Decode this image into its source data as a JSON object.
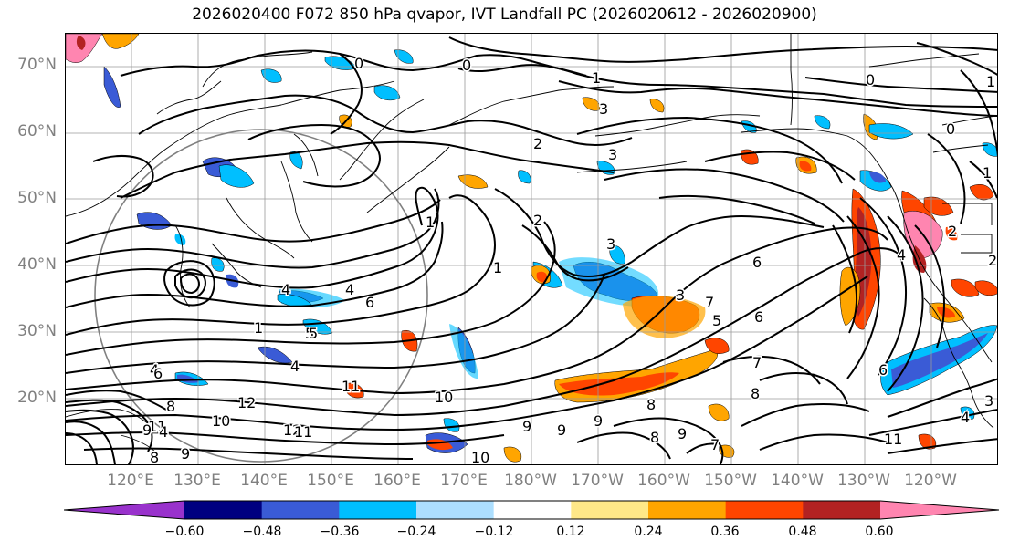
{
  "title": "2026020400 F072 850 hPa qvapor, IVT Landfall PC (2026020612 - 2026020900)",
  "lat_labels": [
    "70°N",
    "60°N",
    "50°N",
    "40°N",
    "30°N",
    "20°N"
  ],
  "lon_labels": [
    "120°E",
    "130°E",
    "140°E",
    "150°E",
    "160°E",
    "170°E",
    "180°W",
    "170°W",
    "160°W",
    "150°W",
    "140°W",
    "130°W",
    "120°W"
  ],
  "colorbar": {
    "colors": [
      "#9932CC",
      "#000080",
      "#3A5BD6",
      "#00BFFF",
      "#ADDFFF",
      "#FFFFFF",
      "#FFE888",
      "#FFA500",
      "#FF4500",
      "#B22222",
      "#FF85B0"
    ],
    "ticks": [
      "−0.60",
      "−0.48",
      "−0.36",
      "−0.24",
      "−0.12",
      "0.12",
      "0.24",
      "0.36",
      "0.48",
      "0.60"
    ]
  },
  "contour_labels": [
    "0",
    "0",
    "1",
    "0",
    "3",
    "0",
    "3",
    "2",
    "1",
    "1",
    "1",
    "2",
    "3",
    "4",
    "4",
    "4",
    "6",
    "5",
    "5",
    "6",
    "3",
    "5",
    "6",
    "7",
    "7",
    "8",
    "8",
    "9",
    "10",
    "11",
    "12",
    "12",
    "11",
    "9",
    "9",
    "8",
    "7",
    "4",
    "6",
    "8",
    "10",
    "11",
    "9",
    "8",
    "9",
    "10",
    "11",
    "6",
    "4",
    "1",
    "2",
    "3",
    "1",
    "2",
    "9",
    "4",
    "3",
    "4"
  ]
}
